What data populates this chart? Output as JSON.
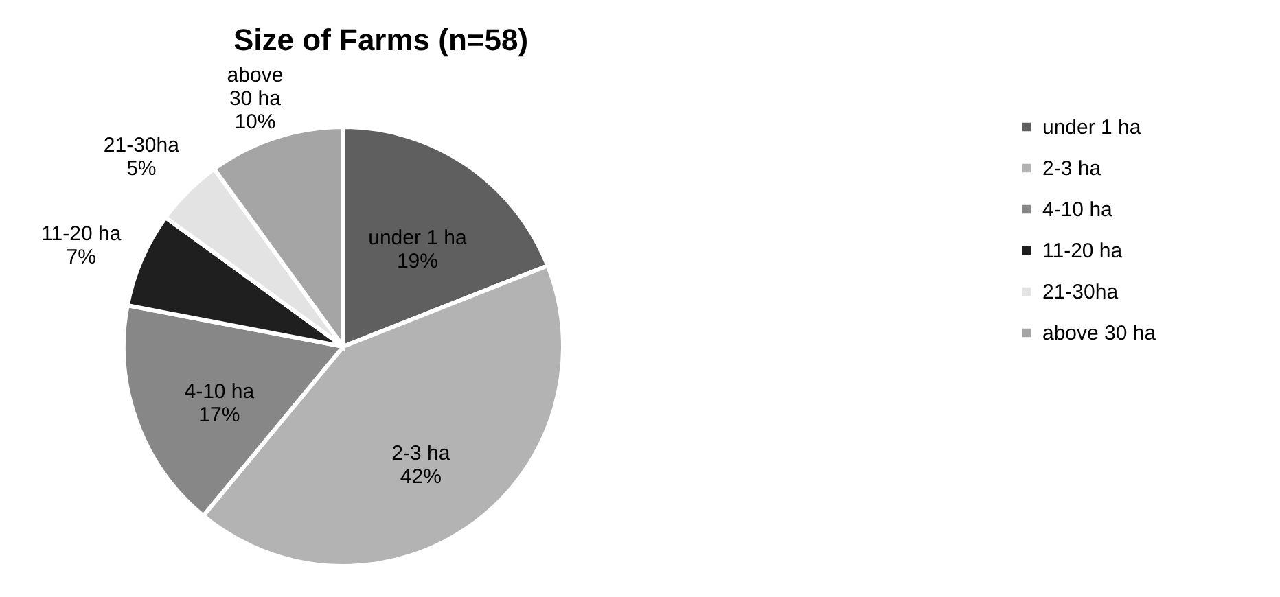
{
  "chart_data": {
    "type": "pie",
    "title": "Size of Farms (n=58)",
    "categories": [
      "under 1 ha",
      "2-3 ha",
      "4-10 ha",
      "11-20 ha",
      "21-30ha",
      "above 30 ha"
    ],
    "values": [
      19,
      42,
      17,
      7,
      5,
      10
    ],
    "colors": [
      "#5f5f5f",
      "#b3b3b3",
      "#878787",
      "#1f1f1f",
      "#e3e3e3",
      "#a5a5a5"
    ],
    "value_labels": [
      "19%",
      "42%",
      "17%",
      "7%",
      "5%",
      "10%"
    ],
    "legend": "right"
  }
}
